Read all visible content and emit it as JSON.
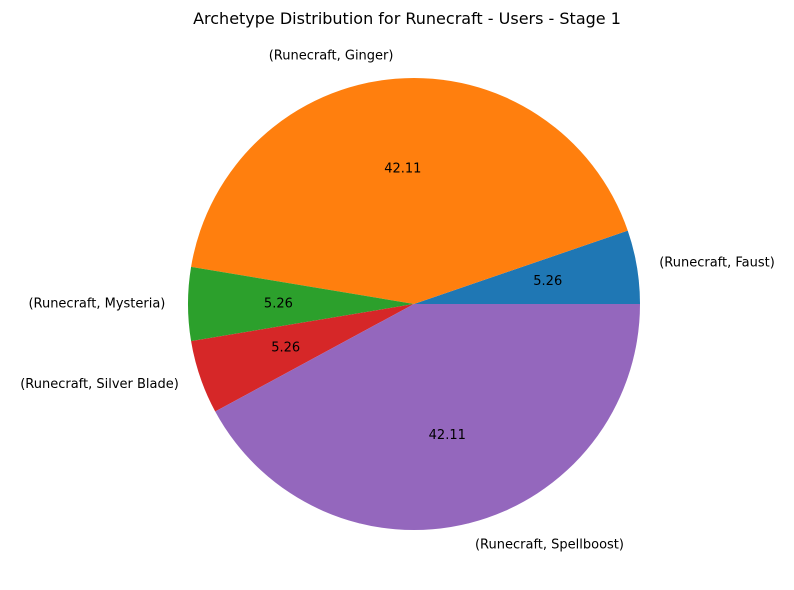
{
  "chart_data": {
    "type": "pie",
    "title": "Archetype Distribution for Runecraft - Users - Stage 1",
    "slices": [
      {
        "label": "(Runecraft, Faust)",
        "value": 5.26,
        "value_label": "5.26",
        "color": "#1f77b4"
      },
      {
        "label": "(Runecraft, Ginger)",
        "value": 42.11,
        "value_label": "42.11",
        "color": "#ff7f0e"
      },
      {
        "label": "(Runecraft, Mysteria)",
        "value": 5.26,
        "value_label": "5.26",
        "color": "#2ca02c"
      },
      {
        "label": "(Runecraft, Silver Blade)",
        "value": 5.26,
        "value_label": "5.26",
        "color": "#d62728"
      },
      {
        "label": "(Runecraft, Spellboost)",
        "value": 42.11,
        "value_label": "42.11",
        "color": "#9467bd"
      }
    ],
    "start_angle_deg": 0,
    "direction": "counterclockwise"
  }
}
